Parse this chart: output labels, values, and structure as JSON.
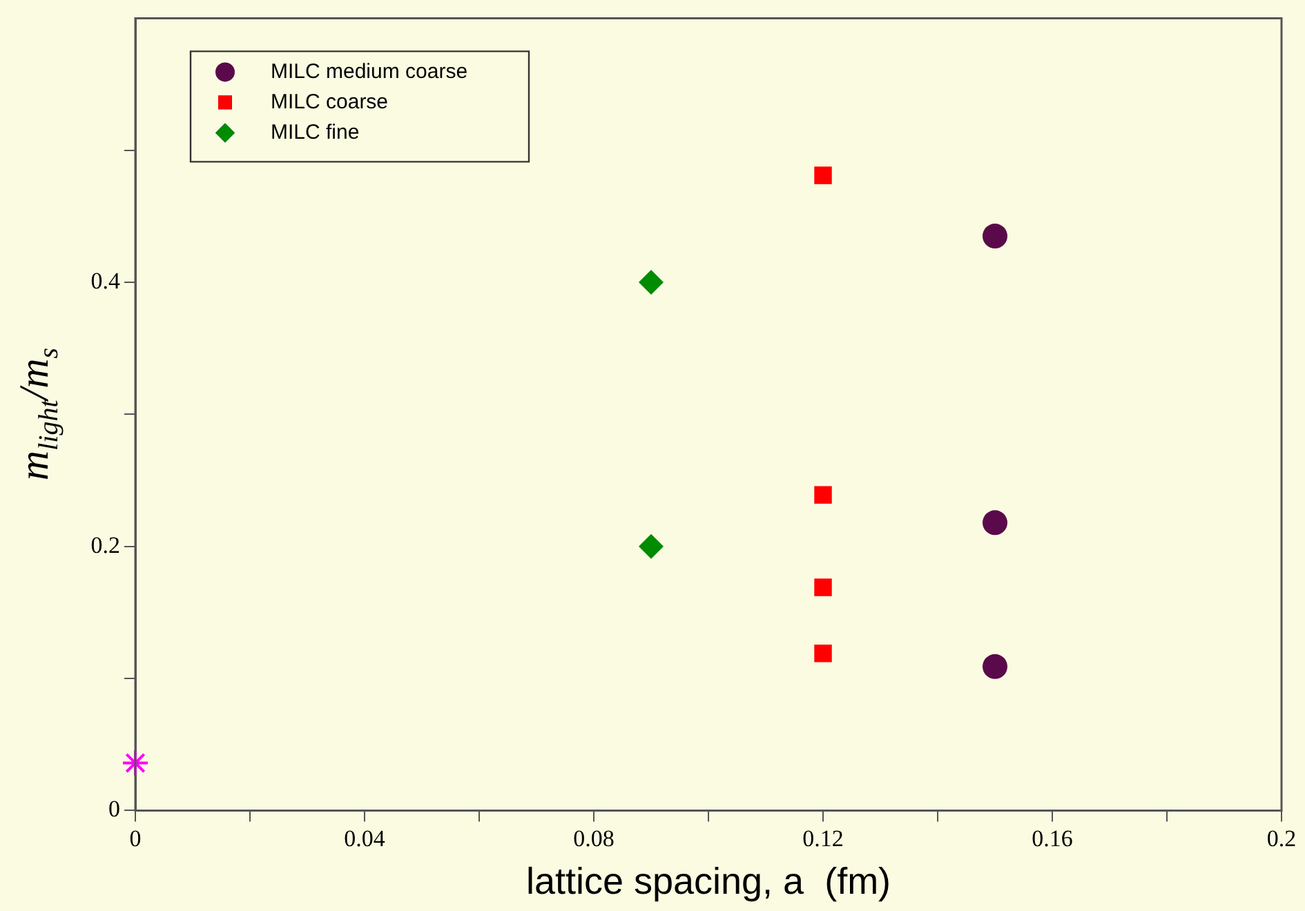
{
  "chart_data": {
    "type": "scatter",
    "xlabel": "lattice spacing, a  (fm)",
    "ylabel": "m$_{light}$/m$_{s}$",
    "xlim": [
      0,
      0.2
    ],
    "ylim": [
      0,
      0.6
    ],
    "xticks": [
      0,
      {
        "value": 0.02,
        "label": null
      },
      0.04,
      {
        "value": 0.06,
        "label": null
      },
      0.08,
      {
        "value": 0.1,
        "label": null
      },
      0.12,
      {
        "value": 0.14,
        "label": null
      },
      0.16,
      {
        "value": 0.18,
        "label": null
      },
      0.2
    ],
    "yticks": [
      0,
      {
        "value": 0.1,
        "label": null
      },
      0.2,
      {
        "value": 0.3,
        "label": null
      },
      0.4,
      {
        "value": 0.5,
        "label": null
      }
    ],
    "grid": false,
    "legend": "top left",
    "series": [
      {
        "name": "MILC medium coarse",
        "color": "#5a0a4a",
        "marker": "circle",
        "x": [
          0.15,
          0.15,
          0.15
        ],
        "values": [
          0.435,
          0.218,
          0.109
        ]
      },
      {
        "name": "MILC coarse",
        "color": "#ff0000",
        "marker": "square",
        "x": [
          0.12,
          0.12,
          0.12,
          0.12
        ],
        "values": [
          0.481,
          0.239,
          0.169,
          0.119
        ]
      },
      {
        "name": "MILC fine",
        "color": "#008c00",
        "marker": "diamond",
        "x": [
          0.09,
          0.09
        ],
        "values": [
          0.4,
          0.2
        ]
      },
      {
        "color": "#ff00ff",
        "marker": "cross",
        "x": [
          0
        ],
        "values": [
          0.036
        ]
      }
    ]
  }
}
